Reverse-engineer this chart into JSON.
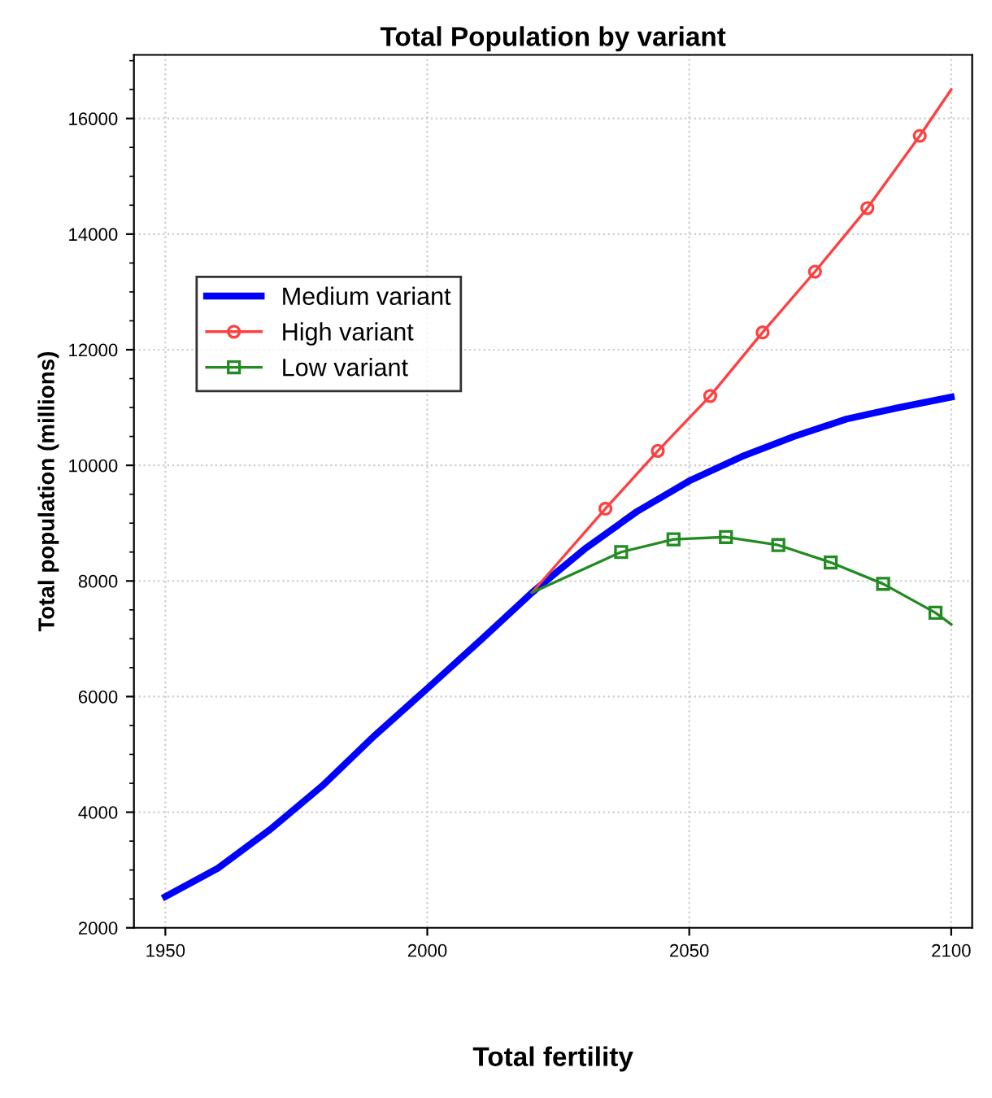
{
  "chart_data": {
    "type": "line",
    "title": "Total Population by variant",
    "xlabel": "Total fertility",
    "ylabel": "Total population (millions)",
    "xlim": [
      1944,
      2104
    ],
    "xticks": [
      1950,
      2000,
      2050,
      2100
    ],
    "ylim": [
      2000,
      17100
    ],
    "yticks": [
      2000,
      4000,
      6000,
      8000,
      10000,
      12000,
      14000,
      16000
    ],
    "grid": true,
    "legend": "upper left",
    "series": [
      {
        "name": "Medium variant",
        "color": "#0000ff",
        "marker": "none",
        "x": [
          1950,
          1960,
          1970,
          1980,
          1990,
          2000,
          2010,
          2020,
          2030,
          2040,
          2050,
          2060,
          2070,
          2080,
          2090,
          2100
        ],
        "values": [
          2540,
          3030,
          3700,
          4460,
          5330,
          6140,
          6960,
          7800,
          8550,
          9200,
          9730,
          10150,
          10500,
          10800,
          11000,
          11180
        ]
      },
      {
        "name": "High variant",
        "color": "#ff4040",
        "marker": "circle",
        "x": [
          2020,
          2034,
          2044,
          2054,
          2064,
          2074,
          2084,
          2094,
          2100
        ],
        "values": [
          7800,
          9250,
          10250,
          11200,
          12300,
          13350,
          14450,
          15700,
          16500
        ]
      },
      {
        "name": "Low variant",
        "color": "#228b22",
        "marker": "square",
        "x": [
          2020,
          2037,
          2047,
          2057,
          2067,
          2077,
          2087,
          2097,
          2100
        ],
        "values": [
          7800,
          8500,
          8720,
          8760,
          8620,
          8320,
          7950,
          7450,
          7250
        ]
      }
    ]
  }
}
